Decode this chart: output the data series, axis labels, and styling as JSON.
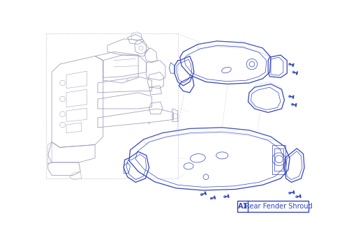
{
  "background_color": "#ffffff",
  "line_color_blue": "#3344bb",
  "line_color_gray": "#9999bb",
  "line_color_dgray": "#8888aa",
  "label_text": "Rear Fender Shroud",
  "label_code": "A1",
  "label_box_color": "#ffffff",
  "label_border_color": "#3344bb",
  "label_text_color": "#3344bb",
  "fig_width": 5.0,
  "fig_height": 3.5,
  "dpi": 100
}
